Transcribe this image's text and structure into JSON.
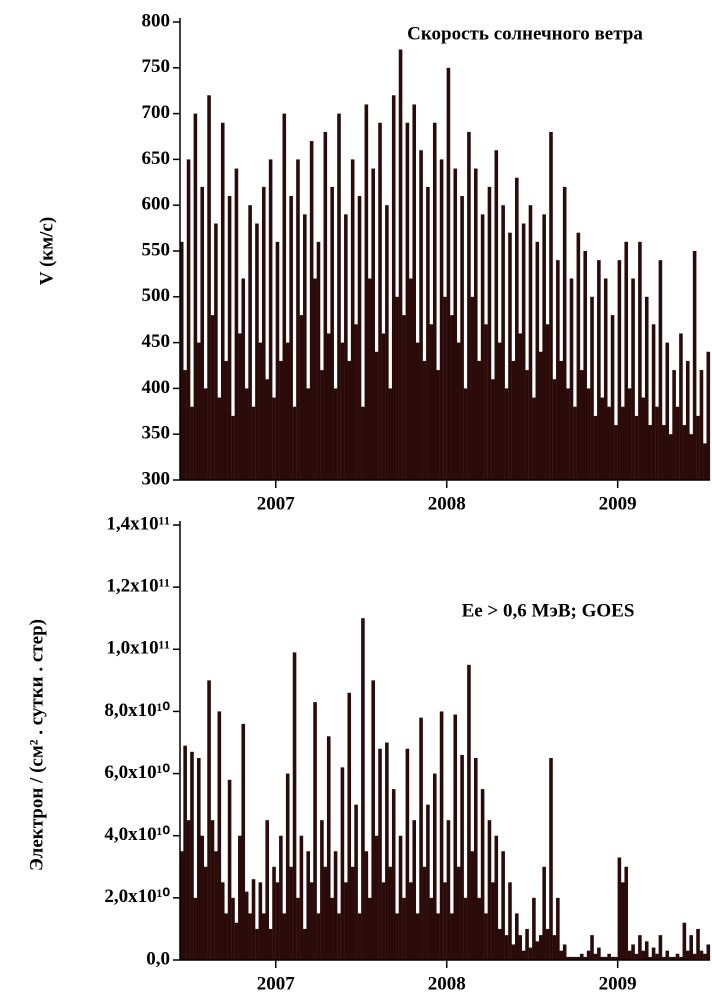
{
  "chart_data": [
    {
      "type": "bar",
      "title": "Скорость солнечного ветра",
      "y_label": "V (км/с)",
      "x": [
        2006.45,
        2006.47,
        2006.49,
        2006.51,
        2006.53,
        2006.55,
        2006.57,
        2006.59,
        2006.61,
        2006.63,
        2006.65,
        2006.67,
        2006.69,
        2006.71,
        2006.73,
        2006.75,
        2006.77,
        2006.79,
        2006.81,
        2006.83,
        2006.85,
        2006.87,
        2006.89,
        2006.91,
        2006.93,
        2006.95,
        2006.97,
        2006.99,
        2007.01,
        2007.03,
        2007.05,
        2007.07,
        2007.09,
        2007.11,
        2007.13,
        2007.15,
        2007.17,
        2007.19,
        2007.21,
        2007.23,
        2007.25,
        2007.27,
        2007.29,
        2007.31,
        2007.33,
        2007.35,
        2007.37,
        2007.39,
        2007.41,
        2007.43,
        2007.45,
        2007.47,
        2007.49,
        2007.51,
        2007.53,
        2007.55,
        2007.57,
        2007.59,
        2007.61,
        2007.63,
        2007.65,
        2007.67,
        2007.69,
        2007.71,
        2007.73,
        2007.75,
        2007.77,
        2007.79,
        2007.81,
        2007.83,
        2007.85,
        2007.87,
        2007.89,
        2007.91,
        2007.93,
        2007.95,
        2007.97,
        2007.99,
        2008.01,
        2008.03,
        2008.05,
        2008.07,
        2008.09,
        2008.11,
        2008.13,
        2008.15,
        2008.17,
        2008.19,
        2008.21,
        2008.23,
        2008.25,
        2008.27,
        2008.29,
        2008.31,
        2008.33,
        2008.35,
        2008.37,
        2008.39,
        2008.41,
        2008.43,
        2008.45,
        2008.47,
        2008.49,
        2008.51,
        2008.53,
        2008.55,
        2008.57,
        2008.59,
        2008.61,
        2008.63,
        2008.65,
        2008.67,
        2008.69,
        2008.71,
        2008.73,
        2008.75,
        2008.77,
        2008.79,
        2008.81,
        2008.83,
        2008.85,
        2008.87,
        2008.89,
        2008.91,
        2008.93,
        2008.95,
        2008.97,
        2008.99,
        2009.01,
        2009.03,
        2009.05,
        2009.07,
        2009.09,
        2009.11,
        2009.13,
        2009.15,
        2009.17,
        2009.19,
        2009.21,
        2009.23,
        2009.25,
        2009.27,
        2009.29,
        2009.31,
        2009.33,
        2009.35,
        2009.37,
        2009.39,
        2009.41,
        2009.43,
        2009.45,
        2009.47,
        2009.49,
        2009.51,
        2009.53
      ],
      "values": [
        560,
        420,
        650,
        380,
        700,
        450,
        620,
        400,
        720,
        480,
        580,
        390,
        690,
        430,
        610,
        370,
        640,
        460,
        520,
        400,
        600,
        380,
        580,
        450,
        620,
        410,
        650,
        390,
        560,
        430,
        700,
        450,
        610,
        380,
        650,
        480,
        590,
        400,
        670,
        520,
        560,
        420,
        680,
        460,
        620,
        400,
        700,
        450,
        590,
        430,
        650,
        470,
        610,
        380,
        710,
        520,
        640,
        440,
        690,
        460,
        600,
        400,
        720,
        500,
        770,
        480,
        690,
        520,
        710,
        450,
        660,
        430,
        620,
        470,
        690,
        420,
        650,
        500,
        750,
        480,
        640,
        450,
        610,
        400,
        680,
        500,
        640,
        430,
        590,
        470,
        620,
        410,
        660,
        450,
        600,
        400,
        570,
        430,
        630,
        460,
        580,
        420,
        600,
        390,
        560,
        440,
        590,
        470,
        680,
        410,
        540,
        430,
        620,
        400,
        520,
        380,
        570,
        420,
        550,
        400,
        500,
        370,
        540,
        390,
        520,
        380,
        480,
        360,
        540,
        380,
        560,
        400,
        520,
        370,
        560,
        390,
        500,
        360,
        470,
        380,
        540,
        360,
        450,
        350,
        420,
        380,
        460,
        360,
        430,
        350,
        550,
        370,
        420,
        340,
        440
      ],
      "color": "#2b0a0a",
      "xlim": [
        2006.44,
        2009.54
      ],
      "xticks": [
        2007,
        2008,
        2009
      ],
      "ylim": [
        300,
        800
      ],
      "yticks": [
        300,
        350,
        400,
        450,
        500,
        550,
        600,
        650,
        700,
        750,
        800
      ]
    },
    {
      "type": "bar",
      "annotation": "Ee > 0,6 МэВ;    GOES",
      "y_label": "Электрон / (см² . сутки . стер)",
      "x": [
        2006.45,
        2006.47,
        2006.49,
        2006.51,
        2006.53,
        2006.55,
        2006.57,
        2006.59,
        2006.61,
        2006.63,
        2006.65,
        2006.67,
        2006.69,
        2006.71,
        2006.73,
        2006.75,
        2006.77,
        2006.79,
        2006.81,
        2006.83,
        2006.85,
        2006.87,
        2006.89,
        2006.91,
        2006.93,
        2006.95,
        2006.97,
        2006.99,
        2007.01,
        2007.03,
        2007.05,
        2007.07,
        2007.09,
        2007.11,
        2007.13,
        2007.15,
        2007.17,
        2007.19,
        2007.21,
        2007.23,
        2007.25,
        2007.27,
        2007.29,
        2007.31,
        2007.33,
        2007.35,
        2007.37,
        2007.39,
        2007.41,
        2007.43,
        2007.45,
        2007.47,
        2007.49,
        2007.51,
        2007.53,
        2007.55,
        2007.57,
        2007.59,
        2007.61,
        2007.63,
        2007.65,
        2007.67,
        2007.69,
        2007.71,
        2007.73,
        2007.75,
        2007.77,
        2007.79,
        2007.81,
        2007.83,
        2007.85,
        2007.87,
        2007.89,
        2007.91,
        2007.93,
        2007.95,
        2007.97,
        2007.99,
        2008.01,
        2008.03,
        2008.05,
        2008.07,
        2008.09,
        2008.11,
        2008.13,
        2008.15,
        2008.17,
        2008.19,
        2008.21,
        2008.23,
        2008.25,
        2008.27,
        2008.29,
        2008.31,
        2008.33,
        2008.35,
        2008.37,
        2008.39,
        2008.41,
        2008.43,
        2008.45,
        2008.47,
        2008.49,
        2008.51,
        2008.53,
        2008.55,
        2008.57,
        2008.59,
        2008.61,
        2008.63,
        2008.65,
        2008.67,
        2008.69,
        2008.71,
        2008.73,
        2008.75,
        2008.77,
        2008.79,
        2008.81,
        2008.83,
        2008.85,
        2008.87,
        2008.89,
        2008.91,
        2008.93,
        2008.95,
        2008.97,
        2008.99,
        2009.01,
        2009.03,
        2009.05,
        2009.07,
        2009.09,
        2009.11,
        2009.13,
        2009.15,
        2009.17,
        2009.19,
        2009.21,
        2009.23,
        2009.25,
        2009.27,
        2009.29,
        2009.31,
        2009.33,
        2009.35,
        2009.37,
        2009.39,
        2009.41,
        2009.43,
        2009.45,
        2009.47,
        2009.49,
        2009.51,
        2009.53
      ],
      "values": [
        35000000000.0,
        69000000000.0,
        45000000000.0,
        67000000000.0,
        20000000000.0,
        65000000000.0,
        40000000000.0,
        30000000000.0,
        90000000000.0,
        45000000000.0,
        35000000000.0,
        80000000000.0,
        25000000000.0,
        15000000000.0,
        58000000000.0,
        20000000000.0,
        12000000000.0,
        40000000000.0,
        76000000000.0,
        22000000000.0,
        15000000000.0,
        26000000000.0,
        10000000000.0,
        25000000000.0,
        15000000000.0,
        45000000000.0,
        10000000000.0,
        30000000000.0,
        25000000000.0,
        40000000000.0,
        15000000000.0,
        60000000000.0,
        30000000000.0,
        99000000000.0,
        20000000000.0,
        40000000000.0,
        10000000000.0,
        35000000000.0,
        25000000000.0,
        83000000000.0,
        15000000000.0,
        45000000000.0,
        30000000000.0,
        72000000000.0,
        20000000000.0,
        35000000000.0,
        15000000000.0,
        62000000000.0,
        25000000000.0,
        86000000000.0,
        30000000000.0,
        50000000000.0,
        15000000000.0,
        110000000000.0,
        35000000000.0,
        20000000000.0,
        90000000000.0,
        40000000000.0,
        68000000000.0,
        25000000000.0,
        70000000000.0,
        30000000000.0,
        55000000000.0,
        15000000000.0,
        40000000000.0,
        20000000000.0,
        68000000000.0,
        25000000000.0,
        45000000000.0,
        15000000000.0,
        78000000000.0,
        30000000000.0,
        50000000000.0,
        20000000000.0,
        60000000000.0,
        15000000000.0,
        80000000000.0,
        25000000000.0,
        45000000000.0,
        15000000000.0,
        79000000000.0,
        30000000000.0,
        66000000000.0,
        20000000000.0,
        95000000000.0,
        35000000000.0,
        65000000000.0,
        20000000000.0,
        55000000000.0,
        15000000000.0,
        45000000000.0,
        25000000000.0,
        40000000000.0,
        10000000000.0,
        35000000000.0,
        8000000000.0,
        25000000000.0,
        5000000000.0,
        15000000000.0,
        8000000000.0,
        3000000000.0,
        10000000000.0,
        4000000000.0,
        20000000000.0,
        6000000000.0,
        8000000000.0,
        30000000000.0,
        10000000000.0,
        65000000000.0,
        8000000000.0,
        20000000000.0,
        3000000000.0,
        5000000000.0,
        1000000000.0,
        1000000000.0,
        1000000000.0,
        1000000000.0,
        2000000000.0,
        1000000000.0,
        3000000000.0,
        8000000000.0,
        2000000000.0,
        4000000000.0,
        1000000000.0,
        1000000000.0,
        2000000000.0,
        1000000000.0,
        1000000000.0,
        33000000000.0,
        25000000000.0,
        30000000000.0,
        3000000000.0,
        5000000000.0,
        2000000000.0,
        8000000000.0,
        3000000000.0,
        6000000000.0,
        1000000000.0,
        4000000000.0,
        2000000000.0,
        8000000000.0,
        1000000000.0,
        3000000000.0,
        1000000000.0,
        1000000000.0,
        2000000000.0,
        1000000000.0,
        12000000000.0,
        3000000000.0,
        8000000000.0,
        2000000000.0,
        10000000000.0,
        3000000000.0,
        2000000000.0,
        5000000000.0
      ],
      "color": "#2b0a0a",
      "xlim": [
        2006.44,
        2009.54
      ],
      "xticks": [
        2007,
        2008,
        2009
      ],
      "ylim": [
        0,
        140000000000.0
      ],
      "yticks": [
        {
          "value": 0,
          "label": "0,0"
        },
        {
          "value": 20000000000.0,
          "label": "2,0x10¹⁰"
        },
        {
          "value": 40000000000.0,
          "label": "4,0x10¹⁰"
        },
        {
          "value": 60000000000.0,
          "label": "6,0x10¹⁰"
        },
        {
          "value": 80000000000.0,
          "label": "8,0x10¹⁰"
        },
        {
          "value": 100000000000.0,
          "label": "1,0x10¹¹"
        },
        {
          "value": 120000000000.0,
          "label": "1,2x10¹¹"
        },
        {
          "value": 140000000000.0,
          "label": "1,4x10¹¹"
        }
      ]
    }
  ]
}
